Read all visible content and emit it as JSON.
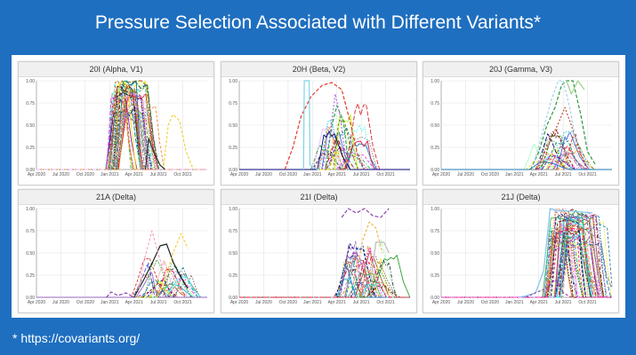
{
  "slide": {
    "title": "Pressure Selection Associated with Different Variants*",
    "footnote": "* https://covariants.org/"
  },
  "chart_data": [
    {
      "type": "line",
      "title": "20I (Alpha, V1)",
      "x_ticks": [
        "Apr 2020",
        "Jul 2020",
        "Oct 2020",
        "Jan 2021",
        "Apr 2021",
        "Jul 2021",
        "Oct 2021"
      ],
      "y_ticks": [
        "0.00",
        "0.25",
        "0.50",
        "0.75",
        "1.00"
      ],
      "ylim": [
        0,
        1
      ],
      "grid": true,
      "legend": "none",
      "series_style": {
        "n": 45,
        "shape": "plateau",
        "start_range": [
          8.4,
          10.2
        ],
        "rise": [
          0.5,
          1.2
        ],
        "hold": [
          1.0,
          3.6
        ],
        "fall": [
          0.6,
          1.6
        ],
        "peak_range": [
          0.55,
          1.0
        ]
      },
      "extra_series": [
        {
          "color": "#f4d13c",
          "dash": "3,2",
          "points": [
            [
              15.6,
              0
            ],
            [
              16.2,
              0.5
            ],
            [
              16.8,
              0.62
            ],
            [
              17.6,
              0.55
            ],
            [
              18.4,
              0.2
            ],
            [
              19.2,
              0.02
            ]
          ]
        },
        {
          "color": "#333333",
          "dash": "",
          "points": [
            [
              13.4,
              0.0
            ],
            [
              13.8,
              0.35
            ],
            [
              14.4,
              0.2
            ],
            [
              15.2,
              0.05
            ],
            [
              15.8,
              0.0
            ]
          ]
        }
      ]
    },
    {
      "type": "line",
      "title": "20H (Beta, V2)",
      "x_ticks": [
        "Apr 2020",
        "Jul 2020",
        "Oct 2020",
        "Jan 2021",
        "Apr 2021",
        "Jul 2021",
        "Oct 2021"
      ],
      "y_ticks": [
        "0.00",
        "0.25",
        "0.50",
        "0.75",
        "1.00"
      ],
      "ylim": [
        0,
        1
      ],
      "grid": true,
      "legend": "none",
      "series_style": {
        "n": 26,
        "shape": "hump",
        "start_range": [
          8.6,
          13.5
        ],
        "rise": [
          0.6,
          1.6
        ],
        "hold": [
          0.3,
          2.0
        ],
        "fall": [
          0.8,
          2.2
        ],
        "peak_range": [
          0.15,
          0.7
        ]
      },
      "extra_series": [
        {
          "color": "#e23b2e",
          "dash": "4,2",
          "points": [
            [
              5.6,
              0
            ],
            [
              6.6,
              0.25
            ],
            [
              7.6,
              0.6
            ],
            [
              8.8,
              0.82
            ],
            [
              10.2,
              0.95
            ],
            [
              11.4,
              0.98
            ],
            [
              12.6,
              0.9
            ],
            [
              13.6,
              0.55
            ],
            [
              14.6,
              0.15
            ],
            [
              15.4,
              0
            ]
          ]
        },
        {
          "color": "#7fd3e8",
          "dash": "",
          "points": [
            [
              7.9,
              0
            ],
            [
              8.0,
              1.0
            ],
            [
              8.6,
              1.0
            ],
            [
              8.7,
              0.05
            ],
            [
              9.6,
              0
            ]
          ]
        },
        {
          "color": "#2fa84f",
          "dash": "4,2",
          "points": [
            [
              10.6,
              0
            ],
            [
              11.4,
              0.5
            ],
            [
              12.0,
              0.72
            ],
            [
              12.8,
              0.55
            ],
            [
              13.4,
              0.1
            ]
          ]
        },
        {
          "color": "#b36ae2",
          "dash": "2,2",
          "points": [
            [
              10.2,
              0
            ],
            [
              11.0,
              0.3
            ],
            [
              11.8,
              0.85
            ],
            [
              12.4,
              0.6
            ],
            [
              13.2,
              0.05
            ]
          ]
        }
      ]
    },
    {
      "type": "line",
      "title": "20J (Gamma, V3)",
      "x_ticks": [
        "Apr 2020",
        "Jul 2020",
        "Oct 2020",
        "Jan 2021",
        "Apr 2021",
        "Jul 2021",
        "Oct 2021"
      ],
      "y_ticks": [
        "0.00",
        "0.25",
        "0.50",
        "0.75",
        "1.00"
      ],
      "ylim": [
        0,
        1
      ],
      "grid": true,
      "legend": "none",
      "series_style": {
        "n": 26,
        "shape": "hump",
        "start_range": [
          10.0,
          15.2
        ],
        "rise": [
          0.8,
          1.8
        ],
        "hold": [
          0.2,
          1.5
        ],
        "fall": [
          1.0,
          2.4
        ],
        "peak_range": [
          0.08,
          0.42
        ]
      },
      "extra_series": [
        {
          "color": "#2e9a3a",
          "dash": "4,2",
          "points": [
            [
              11.0,
              0
            ],
            [
              12.0,
              0.2
            ],
            [
              13.0,
              0.5
            ],
            [
              14.0,
              0.7
            ],
            [
              14.8,
              0.95
            ],
            [
              15.4,
              1.0
            ],
            [
              16.2,
              1.0
            ],
            [
              17.2,
              0.6
            ],
            [
              18.0,
              0.2
            ],
            [
              19.0,
              0.05
            ]
          ]
        },
        {
          "color": "#9ed08d",
          "dash": "",
          "points": [
            [
              15.4,
              1.0
            ],
            [
              16.0,
              0.85
            ],
            [
              16.8,
              1.0
            ],
            [
              17.6,
              0.9
            ]
          ]
        },
        {
          "color": "#c44b2c",
          "dash": "2,2",
          "points": [
            [
              11.8,
              0
            ],
            [
              13.0,
              0.25
            ],
            [
              14.4,
              0.52
            ],
            [
              15.2,
              0.7
            ],
            [
              16.0,
              0.5
            ],
            [
              17.0,
              0.2
            ],
            [
              18.0,
              0.02
            ]
          ]
        },
        {
          "color": "#9fd4ee",
          "dash": "3,2",
          "points": [
            [
              11.2,
              0
            ],
            [
              12.4,
              0.4
            ],
            [
              13.6,
              0.8
            ],
            [
              14.4,
              1.0
            ],
            [
              15.0,
              1.0
            ],
            [
              15.8,
              0.7
            ],
            [
              16.6,
              0.3
            ]
          ]
        }
      ]
    },
    {
      "type": "line",
      "title": "21A (Delta)",
      "x_ticks": [
        "Apr 2020",
        "Jul 2020",
        "Oct 2020",
        "Jan 2021",
        "Apr 2021",
        "Jul 2021",
        "Oct 2021"
      ],
      "y_ticks": [
        "0.00",
        "0.25",
        "0.50",
        "0.75",
        "1.00"
      ],
      "ylim": [
        0,
        1
      ],
      "grid": true,
      "legend": "none",
      "series_style": {
        "n": 26,
        "shape": "hump",
        "start_range": [
          11.6,
          17.2
        ],
        "rise": [
          0.6,
          1.8
        ],
        "hold": [
          0.2,
          1.2
        ],
        "fall": [
          0.6,
          2.0
        ],
        "peak_range": [
          0.05,
          0.4
        ]
      },
      "extra_series": [
        {
          "color": "#222222",
          "dash": "",
          "points": [
            [
              12.0,
              0
            ],
            [
              13.2,
              0.2
            ],
            [
              14.4,
              0.42
            ],
            [
              15.2,
              0.58
            ],
            [
              16.0,
              0.6
            ],
            [
              16.8,
              0.4
            ],
            [
              17.6,
              0.25
            ],
            [
              18.6,
              0.1
            ]
          ]
        },
        {
          "color": "#f4d13c",
          "dash": "3,2",
          "points": [
            [
              14.8,
              0
            ],
            [
              15.8,
              0.2
            ],
            [
              16.8,
              0.5
            ],
            [
              17.8,
              0.72
            ],
            [
              18.6,
              0.55
            ]
          ]
        },
        {
          "color": "#f1a7c5",
          "dash": "3,2",
          "points": [
            [
              12.4,
              0
            ],
            [
              13.2,
              0.4
            ],
            [
              14.2,
              0.75
            ],
            [
              14.8,
              0.55
            ],
            [
              15.6,
              0.3
            ],
            [
              16.4,
              0.1
            ]
          ]
        },
        {
          "color": "#8e44ad",
          "dash": "4,2",
          "points": [
            [
              8.6,
              0
            ],
            [
              9.2,
              0.06
            ],
            [
              10.0,
              0.02
            ],
            [
              11.0,
              0.05
            ],
            [
              12.0,
              0.0
            ]
          ]
        }
      ]
    },
    {
      "type": "line",
      "title": "21I (Delta)",
      "x_ticks": [
        "Apr 2020",
        "Jul 2020",
        "Oct 2020",
        "Jan 2021",
        "Apr 2021",
        "Jul 2021",
        "Oct 2021"
      ],
      "y_ticks": [
        "0.00",
        "0.25",
        "0.50",
        "0.75",
        "1.00"
      ],
      "ylim": [
        0,
        1
      ],
      "grid": true,
      "legend": "none",
      "series_style": {
        "n": 34,
        "shape": "hump",
        "start_range": [
          11.6,
          16.6
        ],
        "rise": [
          0.6,
          1.8
        ],
        "hold": [
          0.2,
          1.6
        ],
        "fall": [
          0.8,
          2.2
        ],
        "peak_range": [
          0.1,
          0.65
        ]
      },
      "extra_series": [
        {
          "color": "#8e44ad",
          "dash": "4,2",
          "points": [
            [
              12.6,
              0.9
            ],
            [
              13.4,
              1.0
            ],
            [
              14.4,
              0.95
            ],
            [
              15.4,
              1.0
            ],
            [
              16.4,
              0.92
            ],
            [
              17.4,
              0.9
            ],
            [
              18.4,
              1.0
            ]
          ]
        },
        {
          "color": "#f1b54d",
          "dash": "3,2",
          "points": [
            [
              14.4,
              0.3
            ],
            [
              15.2,
              0.65
            ],
            [
              16.0,
              0.85
            ],
            [
              16.8,
              0.78
            ],
            [
              17.6,
              0.5
            ]
          ]
        },
        {
          "color": "#bdbdbd",
          "dash": "",
          "points": [
            [
              16.2,
              0.2
            ],
            [
              16.8,
              0.62
            ],
            [
              17.8,
              0.62
            ],
            [
              18.4,
              0.5
            ]
          ]
        }
      ]
    },
    {
      "type": "line",
      "title": "21J (Delta)",
      "x_ticks": [
        "Apr 2020",
        "Jul 2020",
        "Oct 2020",
        "Jan 2021",
        "Apr 2021",
        "Jul 2021",
        "Oct 2021"
      ],
      "y_ticks": [
        "0.00",
        "0.25",
        "0.50",
        "0.75",
        "1.00"
      ],
      "ylim": [
        0,
        1
      ],
      "grid": true,
      "legend": "none",
      "series_style": {
        "n": 50,
        "shape": "plateau",
        "start_range": [
          12.4,
          15.0
        ],
        "rise": [
          0.4,
          1.4
        ],
        "hold": [
          1.0,
          4.5
        ],
        "fall": [
          0.6,
          1.8
        ],
        "peak_range": [
          0.55,
          1.0
        ]
      },
      "extra_series": [
        {
          "color": "#7fc6ea",
          "dash": "",
          "points": [
            [
              9.6,
              0
            ],
            [
              10.6,
              0.02
            ],
            [
              11.6,
              0.05
            ],
            [
              12.6,
              0.3
            ],
            [
              13.4,
              1.0
            ],
            [
              14.2,
              0.98
            ],
            [
              16.0,
              0.97
            ],
            [
              18.6,
              0.95
            ]
          ]
        },
        {
          "color": "#8e44ad",
          "dash": "3,2",
          "points": [
            [
              10.4,
              0
            ],
            [
              11.8,
              0.06
            ],
            [
              13.0,
              0.1
            ],
            [
              14.0,
              0.2
            ],
            [
              15.0,
              0.05
            ],
            [
              16.0,
              0.0
            ]
          ]
        }
      ]
    }
  ]
}
